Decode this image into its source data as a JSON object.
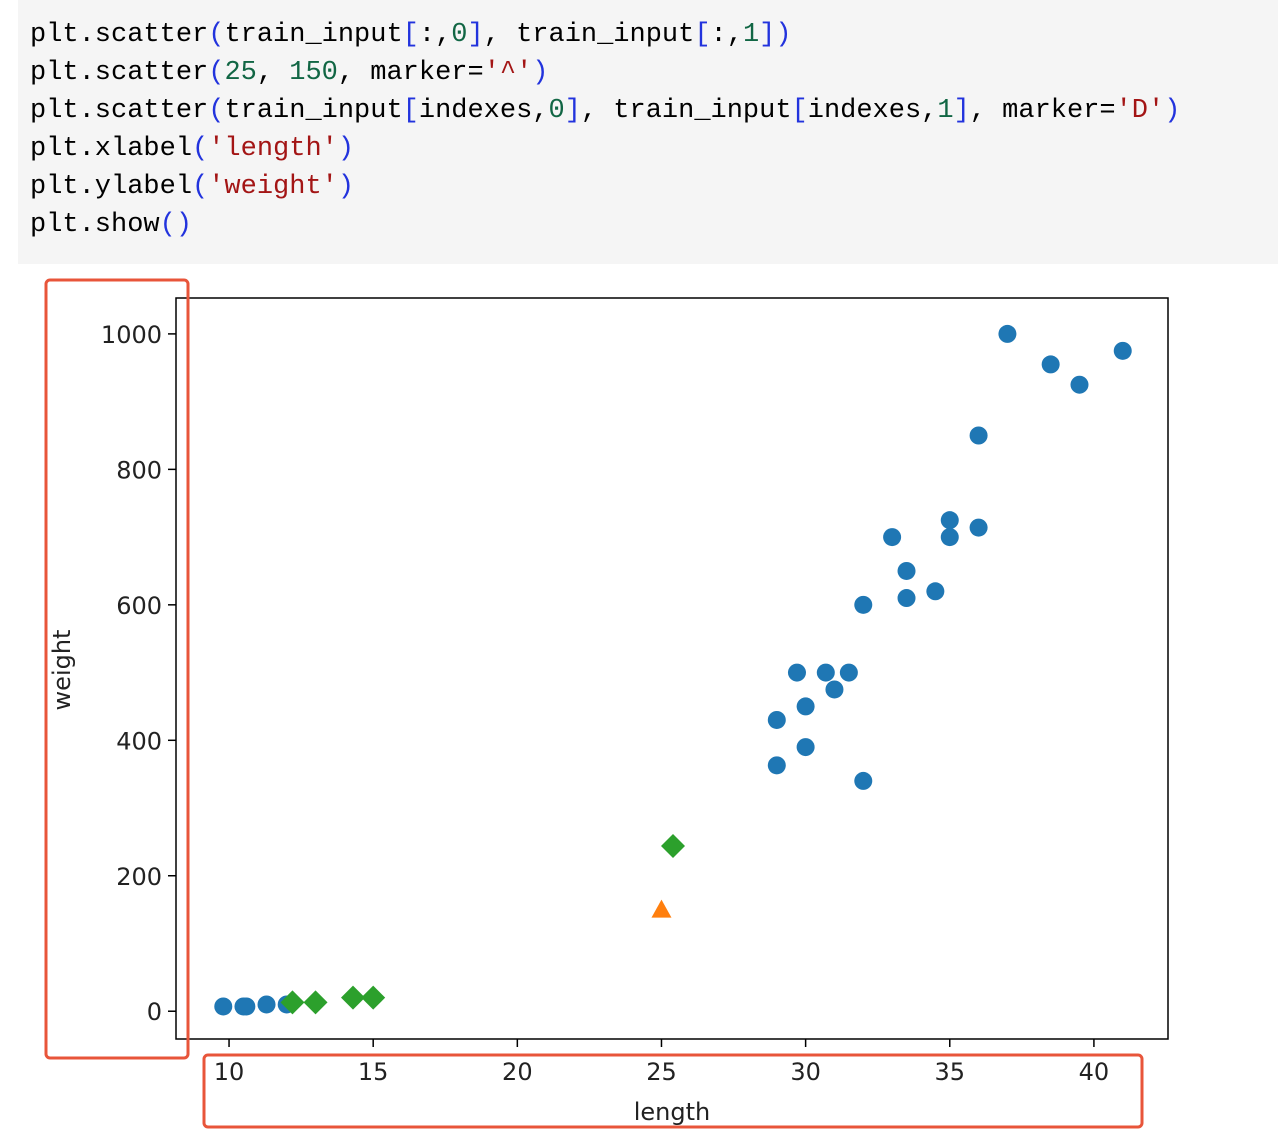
{
  "code": {
    "lines": [
      [
        {
          "text": "plt.scatter",
          "color": "#000000"
        },
        {
          "text": "(",
          "color": "#2233dd"
        },
        {
          "text": "train_input",
          "color": "#000000"
        },
        {
          "text": "[",
          "color": "#2233dd"
        },
        {
          "text": ":,",
          "color": "#000000"
        },
        {
          "text": "0",
          "color": "#116644"
        },
        {
          "text": "]",
          "color": "#2233dd"
        },
        {
          "text": ", train_input",
          "color": "#000000"
        },
        {
          "text": "[",
          "color": "#2233dd"
        },
        {
          "text": ":,",
          "color": "#000000"
        },
        {
          "text": "1",
          "color": "#116644"
        },
        {
          "text": "])",
          "color": "#2233dd"
        }
      ],
      [
        {
          "text": "plt.scatter",
          "color": "#000000"
        },
        {
          "text": "(",
          "color": "#2233dd"
        },
        {
          "text": "25",
          "color": "#116644"
        },
        {
          "text": ", ",
          "color": "#000000"
        },
        {
          "text": "150",
          "color": "#116644"
        },
        {
          "text": ", marker=",
          "color": "#000000"
        },
        {
          "text": "'^'",
          "color": "#a31515"
        },
        {
          "text": ")",
          "color": "#2233dd"
        }
      ],
      [
        {
          "text": "plt.scatter",
          "color": "#000000"
        },
        {
          "text": "(",
          "color": "#2233dd"
        },
        {
          "text": "train_input",
          "color": "#000000"
        },
        {
          "text": "[",
          "color": "#2233dd"
        },
        {
          "text": "indexes,",
          "color": "#000000"
        },
        {
          "text": "0",
          "color": "#116644"
        },
        {
          "text": "]",
          "color": "#2233dd"
        },
        {
          "text": ", train_input",
          "color": "#000000"
        },
        {
          "text": "[",
          "color": "#2233dd"
        },
        {
          "text": "indexes,",
          "color": "#000000"
        },
        {
          "text": "1",
          "color": "#116644"
        },
        {
          "text": "]",
          "color": "#2233dd"
        },
        {
          "text": ", marker=",
          "color": "#000000"
        },
        {
          "text": "'D'",
          "color": "#a31515"
        },
        {
          "text": ")",
          "color": "#2233dd"
        }
      ],
      [
        {
          "text": "plt.xlabel",
          "color": "#000000"
        },
        {
          "text": "(",
          "color": "#2233dd"
        },
        {
          "text": "'length'",
          "color": "#a31515"
        },
        {
          "text": ")",
          "color": "#2233dd"
        }
      ],
      [
        {
          "text": "plt.ylabel",
          "color": "#000000"
        },
        {
          "text": "(",
          "color": "#2233dd"
        },
        {
          "text": "'weight'",
          "color": "#a31515"
        },
        {
          "text": ")",
          "color": "#2233dd"
        }
      ],
      [
        {
          "text": "plt.show",
          "color": "#000000"
        },
        {
          "text": "()",
          "color": "#2233dd"
        }
      ]
    ]
  },
  "chart_data": {
    "type": "scatter",
    "x_label": "length",
    "y_label": "weight",
    "xlim": [
      8.16,
      42.57
    ],
    "ylim": [
      -41,
      1053
    ],
    "xticks": [
      10,
      15,
      20,
      25,
      30,
      35,
      40
    ],
    "yticks": [
      0,
      200,
      400,
      600,
      800,
      1000
    ],
    "series": [
      {
        "color": "#1f77b4",
        "marker": "circle",
        "x": [
          37,
          38.5,
          39.5,
          41,
          36,
          35,
          35,
          36,
          33,
          33.5,
          33.5,
          34.5,
          32,
          29.7,
          30.7,
          31.5,
          31,
          30,
          29,
          30,
          29,
          32,
          9.8,
          10.5,
          10.6,
          11.3,
          12
        ],
        "values": [
          1000,
          955,
          925,
          975,
          850,
          725,
          700,
          714,
          700,
          650,
          610,
          620,
          600,
          500,
          500,
          500,
          475,
          450,
          430,
          390,
          363,
          340,
          7,
          7,
          7,
          10,
          10
        ]
      },
      {
        "color": "#ff7f0e",
        "marker": "triangle",
        "x": [
          25
        ],
        "values": [
          150
        ]
      },
      {
        "color": "#2ca02c",
        "marker": "diamond",
        "x": [
          12.2,
          13,
          14.3,
          15,
          25.4
        ],
        "values": [
          13,
          13,
          20,
          20,
          244
        ]
      }
    ]
  }
}
